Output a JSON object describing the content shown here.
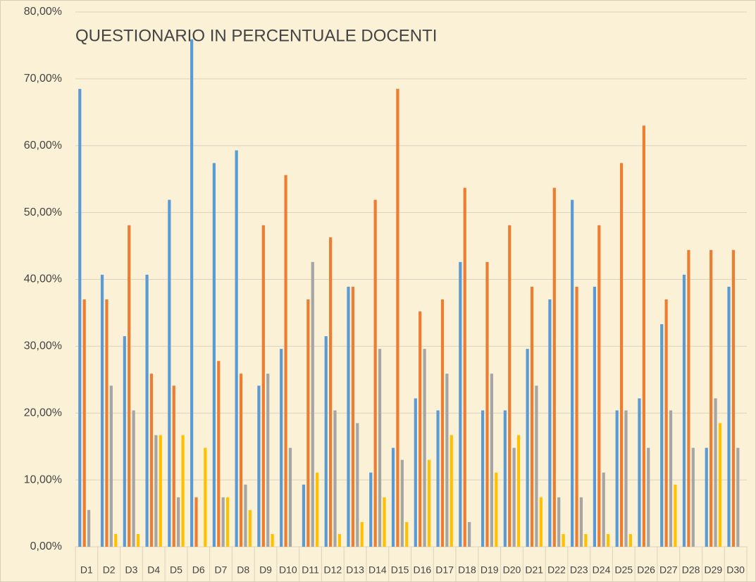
{
  "chart_data": {
    "type": "bar",
    "title": "QUESTIONARIO IN PERCENTUALE DOCENTI",
    "categories": [
      "D1",
      "D2",
      "D3",
      "D4",
      "D5",
      "D6",
      "D7",
      "D8",
      "D9",
      "D10",
      "D11",
      "D12",
      "D13",
      "D14",
      "D15",
      "D16",
      "D17",
      "D18",
      "D19",
      "D20",
      "D21",
      "D22",
      "D23",
      "D24",
      "D25",
      "D26",
      "D27",
      "D28",
      "D29",
      "D30"
    ],
    "series": [
      {
        "color": "#5b9bd5",
        "values": [
          68.5,
          40.7,
          31.5,
          40.7,
          51.9,
          75.9,
          57.4,
          59.3,
          24.1,
          29.6,
          9.3,
          31.5,
          38.9,
          11.1,
          14.8,
          22.2,
          20.4,
          42.6,
          20.4,
          20.4,
          29.6,
          37,
          51.9,
          38.9,
          20.4,
          22.2,
          33.3,
          40.7,
          14.8,
          38.9
        ]
      },
      {
        "color": "#ed7d31",
        "values": [
          37,
          37,
          48.1,
          25.9,
          24.1,
          7.4,
          27.8,
          25.9,
          48.1,
          55.6,
          37,
          46.3,
          38.9,
          51.9,
          68.5,
          35.2,
          37,
          53.7,
          42.6,
          48.1,
          38.9,
          53.7,
          38.9,
          48.1,
          57.4,
          63,
          37,
          44.4,
          44.4,
          44.4
        ]
      },
      {
        "color": "#a5a5a5",
        "values": [
          5.5,
          24.1,
          20.4,
          16.7,
          7.4,
          0,
          7.4,
          9.3,
          25.9,
          14.8,
          42.6,
          20.4,
          18.5,
          29.6,
          13,
          29.6,
          25.9,
          3.7,
          25.9,
          14.8,
          24.1,
          7.4,
          7.4,
          11.1,
          20.4,
          14.8,
          20.4,
          14.8,
          22.2,
          14.8
        ]
      },
      {
        "color": "#ffc000",
        "values": [
          0,
          1.9,
          1.9,
          16.7,
          16.7,
          14.8,
          7.4,
          5.5,
          1.9,
          0,
          11.1,
          1.9,
          3.7,
          7.4,
          3.7,
          13,
          16.7,
          0,
          11.1,
          16.7,
          7.4,
          1.9,
          1.9,
          1.9,
          1.9,
          0,
          9.3,
          0,
          18.5,
          0
        ]
      }
    ],
    "ylim": [
      0,
      80
    ],
    "yticks": [
      {
        "value": 0,
        "label": "0,00%"
      },
      {
        "value": 10,
        "label": "10,00%"
      },
      {
        "value": 20,
        "label": "20,00%"
      },
      {
        "value": 30,
        "label": "30,00%"
      },
      {
        "value": 40,
        "label": "40,00%"
      },
      {
        "value": 50,
        "label": "50,00%"
      },
      {
        "value": 60,
        "label": "60,00%"
      },
      {
        "value": 70,
        "label": "70,00%"
      },
      {
        "value": 80,
        "label": "80,00%"
      }
    ],
    "grid": true
  }
}
